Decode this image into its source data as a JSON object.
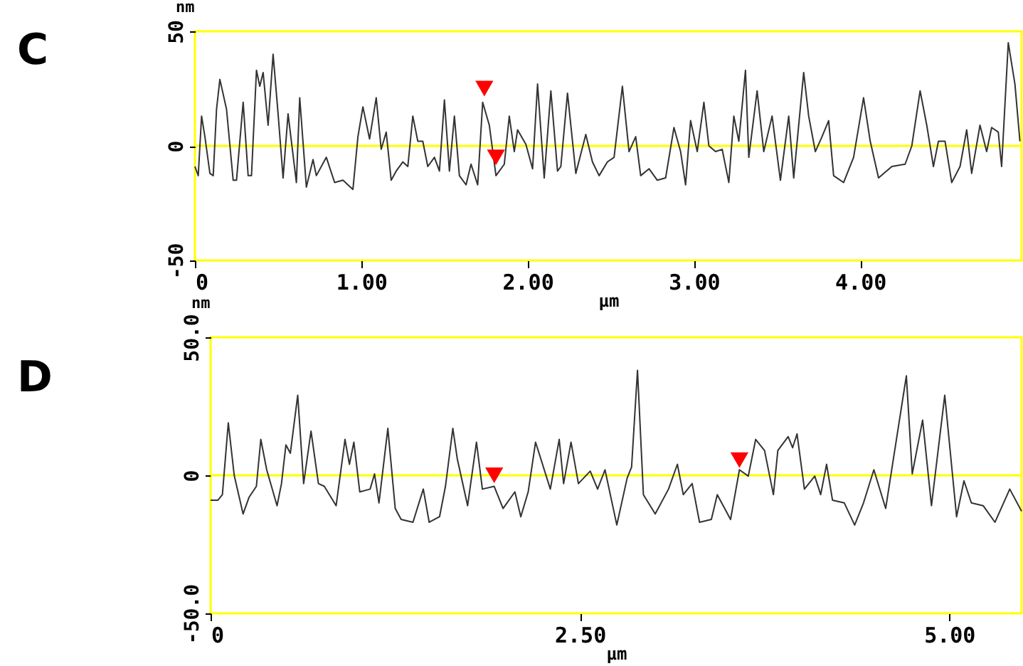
{
  "chart_data": [
    {
      "type": "line",
      "title": "C",
      "xlabel": "µm",
      "ylabel": "nm",
      "xlim": [
        0,
        4.97
      ],
      "xticks": [
        0,
        {
          "value": 1,
          "label": "1.00"
        },
        {
          "value": 2,
          "label": "2.00"
        },
        {
          "value": 3,
          "label": "3.00"
        },
        {
          "value": 4,
          "label": "4.00"
        }
      ],
      "ylim": [
        -50,
        50
      ],
      "yticks": [
        -50,
        0,
        50
      ],
      "grid": false,
      "ref_lines": [
        {
          "axis": "y",
          "value": 0,
          "color": "#ffff00"
        }
      ],
      "series": [
        {
          "color": "#333333",
          "x": [
            0,
            0.02,
            0.04,
            0.06,
            0.09,
            0.11,
            0.13,
            0.15,
            0.19,
            0.23,
            0.25,
            0.29,
            0.32,
            0.34,
            0.37,
            0.39,
            0.41,
            0.44,
            0.47,
            0.5,
            0.53,
            0.56,
            0.58,
            0.61,
            0.63,
            0.67,
            0.71,
            0.73,
            0.79,
            0.84,
            0.89,
            0.95,
            0.98,
            1.01,
            1.05,
            1.09,
            1.12,
            1.15,
            1.18,
            1.21,
            1.25,
            1.28,
            1.31,
            1.34,
            1.37,
            1.4,
            1.44,
            1.47,
            1.5,
            1.53,
            1.56,
            1.59,
            1.63,
            1.66,
            1.7,
            1.73,
            1.77,
            1.81,
            1.86,
            1.89,
            1.92,
            1.94,
            1.99,
            2.03,
            2.06,
            2.1,
            2.14,
            2.18,
            2.2,
            2.24,
            2.29,
            2.35,
            2.39,
            2.43,
            2.48,
            2.52,
            2.57,
            2.61,
            2.65,
            2.68,
            2.73,
            2.78,
            2.83,
            2.88,
            2.92,
            2.95,
            2.98,
            3.02,
            3.06,
            3.09,
            3.13,
            3.17,
            3.21,
            3.24,
            3.27,
            3.31,
            3.33,
            3.38,
            3.42,
            3.47,
            3.52,
            3.57,
            3.6,
            3.66,
            3.69,
            3.73,
            3.77,
            3.81,
            3.84,
            3.9,
            3.96,
            4.02,
            4.06,
            4.11,
            4.19,
            4.27,
            4.31,
            4.36,
            4.4,
            4.44,
            4.47,
            4.51,
            4.55,
            4.6,
            4.64,
            4.67,
            4.72,
            4.76,
            4.79,
            4.83,
            4.85,
            4.89,
            4.93,
            4.96
          ],
          "values": [
            -9,
            -13,
            13,
            4,
            -12,
            -13,
            16,
            29,
            16,
            -15,
            -15,
            19,
            -13,
            -13,
            33,
            26,
            32,
            9,
            40,
            14,
            -14,
            14,
            2,
            -16,
            21,
            -18,
            -6,
            -13,
            -5,
            -16,
            -15,
            -19,
            4,
            17,
            3,
            21,
            -1.5,
            6,
            -15,
            -11,
            -7,
            -9,
            13,
            2,
            2,
            -9,
            -5,
            -11,
            20,
            -11,
            13,
            -13,
            -17,
            -8,
            -17,
            19,
            9,
            -13,
            -8,
            13,
            -2.5,
            7,
            0.6,
            -10,
            27,
            -14,
            24,
            -11,
            -9,
            23,
            -12,
            5,
            -7,
            -13,
            -7,
            -5,
            26,
            -2.5,
            4,
            -13,
            -10,
            -15,
            -14,
            8,
            -2.5,
            -17,
            11,
            -2.5,
            19,
            0,
            -2.5,
            -1.5,
            -16,
            13,
            2,
            33,
            -5,
            24,
            -2.5,
            13,
            -15,
            13,
            -14,
            32,
            13,
            -2.5,
            4,
            11,
            -13,
            -16,
            -5,
            21,
            2,
            -14,
            -9,
            -8,
            0,
            24,
            9,
            -9,
            2,
            2,
            -16,
            -9,
            7,
            -12,
            9,
            -2.5,
            8,
            6,
            -9,
            45,
            27,
            2
          ]
        },
        {
          "type": "scatter",
          "marker": "triangle",
          "color": "#ff0000",
          "x": [
            1.74,
            1.81
          ],
          "values": [
            25,
            -5
          ]
        }
      ]
    },
    {
      "type": "line",
      "title": "D",
      "xlabel": "µm",
      "ylabel": "nm",
      "xlim": [
        0,
        5.49
      ],
      "xticks": [
        0,
        {
          "value": 2.5,
          "label": "2.50"
        },
        {
          "value": 5,
          "label": "5.00"
        }
      ],
      "ylim": [
        -50,
        50
      ],
      "yticks": [
        {
          "value": -50,
          "label": "-50.0"
        },
        0,
        {
          "value": 50,
          "label": "50.0"
        }
      ],
      "grid": false,
      "ref_lines": [
        {
          "axis": "y",
          "value": 0,
          "color": "#ffff00"
        }
      ],
      "series": [
        {
          "color": "#333333",
          "x": [
            0,
            0.05,
            0.08,
            0.12,
            0.16,
            0.22,
            0.26,
            0.31,
            0.34,
            0.38,
            0.45,
            0.48,
            0.51,
            0.54,
            0.59,
            0.63,
            0.68,
            0.73,
            0.77,
            0.85,
            0.91,
            0.94,
            0.97,
            1.01,
            1.08,
            1.11,
            1.14,
            1.2,
            1.25,
            1.29,
            1.37,
            1.44,
            1.48,
            1.55,
            1.59,
            1.64,
            1.67,
            1.74,
            1.8,
            1.84,
            1.92,
            1.98,
            2.06,
            2.1,
            2.15,
            2.2,
            2.3,
            2.36,
            2.39,
            2.44,
            2.49,
            2.57,
            2.62,
            2.67,
            2.75,
            2.82,
            2.85,
            2.89,
            2.93,
            3.01,
            3.1,
            3.16,
            3.2,
            3.26,
            3.31,
            3.39,
            3.43,
            3.52,
            3.58,
            3.64,
            3.69,
            3.75,
            3.81,
            3.84,
            3.91,
            3.94,
            3.97,
            4.02,
            4.09,
            4.13,
            4.17,
            4.21,
            4.29,
            4.36,
            4.42,
            4.49,
            4.57,
            4.64,
            4.71,
            4.75,
            4.82,
            4.88,
            4.97,
            5.05,
            5.1,
            5.15,
            5.23,
            5.31,
            5.41,
            5.49
          ],
          "values": [
            -9,
            -9,
            -7,
            19,
            0,
            -14,
            -8,
            -4,
            13,
            2,
            -11,
            -3,
            11,
            8,
            29,
            -3,
            16,
            -3,
            -4,
            -11,
            13,
            4,
            12,
            -6,
            -5,
            0.5,
            -10,
            17,
            -12,
            -16,
            -17,
            -5,
            -17,
            -15,
            -4,
            17,
            6,
            -11,
            12,
            -5,
            -4,
            -12,
            -6,
            -15,
            -6,
            12,
            -5,
            13,
            -3,
            12,
            -3,
            1.5,
            -5,
            2,
            -18,
            -1,
            3,
            38,
            -7,
            -14,
            -5,
            4,
            -7,
            -3,
            -17,
            -16,
            -7,
            -16,
            2,
            -0.3,
            13,
            9,
            -7,
            9,
            14,
            10,
            15,
            -5,
            -0.3,
            -7,
            4,
            -9,
            -10,
            -18,
            -10,
            2,
            -12,
            12,
            36,
            0.5,
            20,
            -11,
            29,
            -15,
            -2,
            -10,
            -11,
            -17,
            -5,
            -13
          ]
        },
        {
          "type": "scatter",
          "marker": "triangle",
          "color": "#ff0000",
          "x": [
            1.92,
            3.58
          ],
          "values": [
            0,
            5.5
          ]
        }
      ]
    }
  ]
}
